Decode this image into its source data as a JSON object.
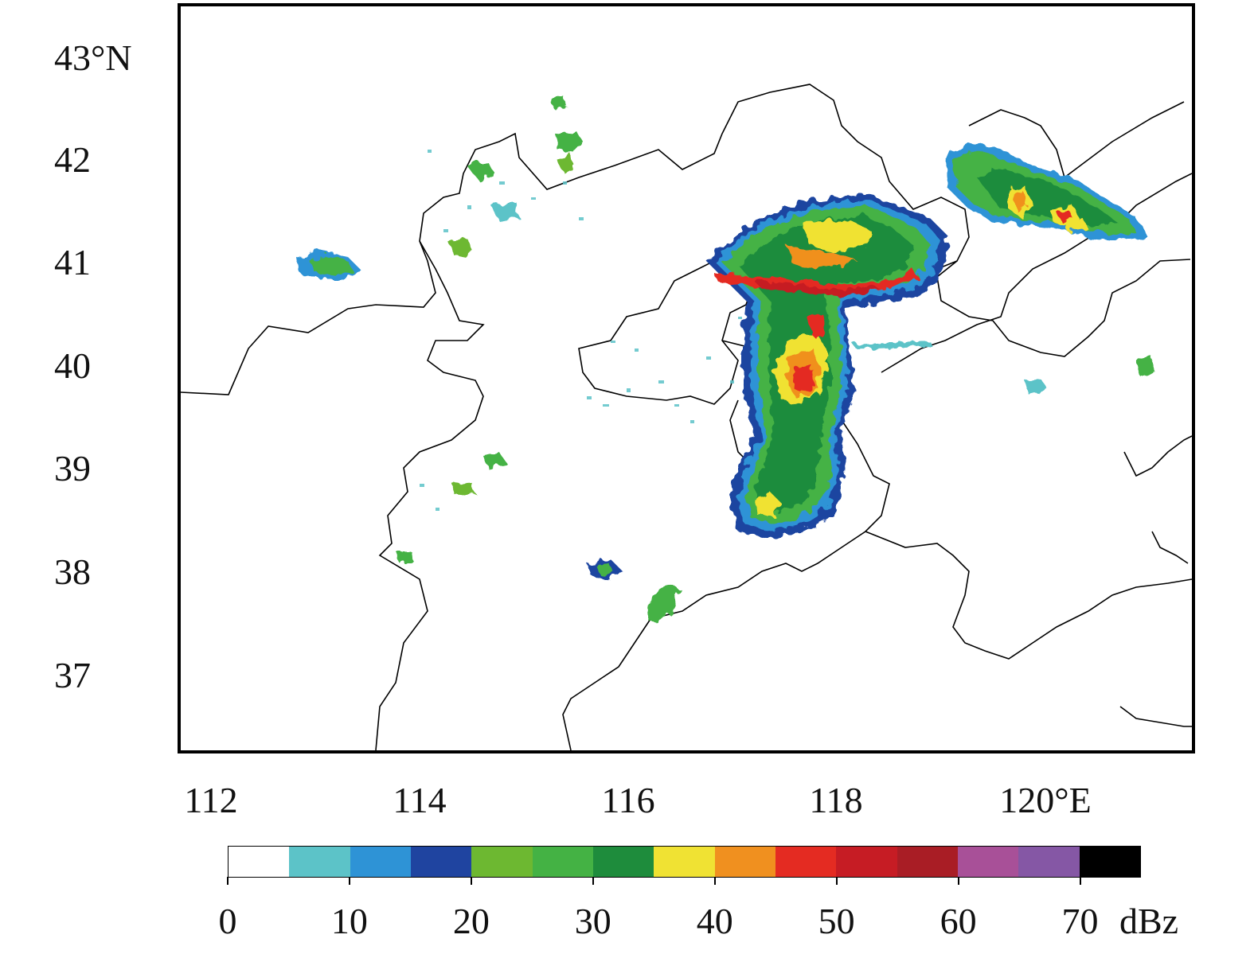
{
  "map": {
    "lat_labels": [
      "43°N",
      "42",
      "41",
      "40",
      "39",
      "38",
      "37"
    ],
    "lon_labels": [
      "112",
      "114",
      "116",
      "118",
      "120°E"
    ],
    "extent": {
      "lon_min": 111.7,
      "lon_max": 121.3,
      "lat_min": 36.25,
      "lat_max": 43.5
    },
    "features": {
      "province_boundaries": true,
      "coastline": true,
      "radar_reflectivity_cells": [
        {
          "region": "main-band-north",
          "max_dbz": 55
        },
        {
          "region": "main-band-central",
          "max_dbz": 55
        },
        {
          "region": "main-band-south",
          "max_dbz": 40
        },
        {
          "region": "northeast-band",
          "max_dbz": 50
        },
        {
          "region": "west-isolated-cell",
          "max_dbz": 30
        },
        {
          "region": "scattered-echoes-west",
          "max_dbz": 30
        }
      ]
    }
  },
  "colorbar": {
    "unit": "dBz",
    "tick_labels": [
      "0",
      "10",
      "20",
      "30",
      "40",
      "50",
      "60",
      "70"
    ],
    "tick_values": [
      0,
      10,
      20,
      30,
      40,
      50,
      60,
      70
    ],
    "bin_edges": [
      0,
      5,
      10,
      15,
      20,
      25,
      30,
      35,
      40,
      45,
      50,
      55,
      60,
      65,
      70,
      75
    ],
    "colors": [
      "#ffffff",
      "#5cc3c8",
      "#2e93d6",
      "#1f44a0",
      "#6db831",
      "#44b244",
      "#1e8c3c",
      "#f0e233",
      "#f0901f",
      "#e42b22",
      "#c61c24",
      "#a91d25",
      "#a85098",
      "#8557a5",
      "#000000"
    ]
  }
}
